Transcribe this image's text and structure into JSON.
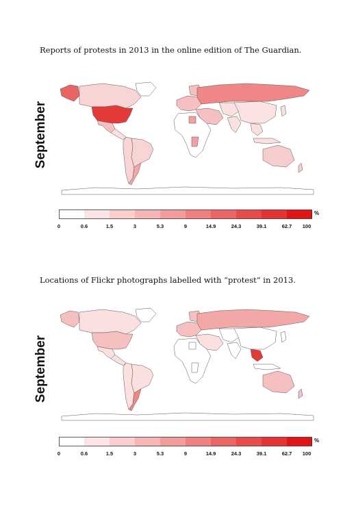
{
  "panels": [
    {
      "title": "Reports of protests in 2013 in the online edition of The Guardian.",
      "side_label": "September",
      "fills": {
        "usa": "#e53a3a",
        "canada": "#f9d4d4",
        "alaska": "#eb6464",
        "greenland": "#ffffff",
        "mexico": "#f7c0c0",
        "central": "#fbe0e0",
        "brazil": "#f9d4d4",
        "south_am_west": "#f9d4d4",
        "argentina": "#f3a8a8",
        "west_europe": "#f7c0c0",
        "russia": "#f08686",
        "middle_east": "#f7c0c0",
        "africa": "#ffffff",
        "africa_hot": "#f3a0a0",
        "asia": "#fbe0e0",
        "china": "#fbe3e3",
        "se_asia": "#fbe0e0",
        "australia": "#f7cccc",
        "antarctica": "#ffffff"
      },
      "legend": {
        "ticks": [
          "0",
          "0.6",
          "1.5",
          "3",
          "5.3",
          "9",
          "14.9",
          "24.3",
          "39.1",
          "62.7",
          "100"
        ],
        "colors": [
          "#ffffff",
          "#fde4e4",
          "#fbcfcf",
          "#f8b5b5",
          "#f49b9b",
          "#f08080",
          "#ec6565",
          "#e94b4b",
          "#e63232",
          "#e51414"
        ],
        "unit": "%"
      }
    },
    {
      "title": "Locations of Flickr photographs labelled with “protest” in 2013.",
      "side_label": "September",
      "fills": {
        "usa": "#f7c0c0",
        "canada": "#fbe0e0",
        "alaska": "#f7c0c0",
        "greenland": "#ffffff",
        "mexico": "#fbe0e0",
        "central": "#fbe0e0",
        "brazil": "#fbe0e0",
        "south_am_west": "#fbe0e0",
        "argentina": "#f08686",
        "west_europe": "#f7c0c0",
        "russia": "#f3a8a8",
        "middle_east": "#fbe0e0",
        "africa": "#ffffff",
        "africa_hot": "#ffffff",
        "asia": "#ffffff",
        "china": "#ffffff",
        "se_asia": "#e53a3a",
        "australia": "#f7c0c0",
        "antarctica": "#ffffff"
      },
      "legend": {
        "ticks": [
          "0",
          "0.6",
          "1.5",
          "3",
          "5.3",
          "9",
          "14.9",
          "24.3",
          "39.1",
          "62.7",
          "100"
        ],
        "colors": [
          "#ffffff",
          "#fde4e4",
          "#fbcfcf",
          "#f8b5b5",
          "#f49b9b",
          "#f08080",
          "#ec6565",
          "#e94b4b",
          "#e63232",
          "#e51414"
        ],
        "unit": "%"
      }
    }
  ]
}
